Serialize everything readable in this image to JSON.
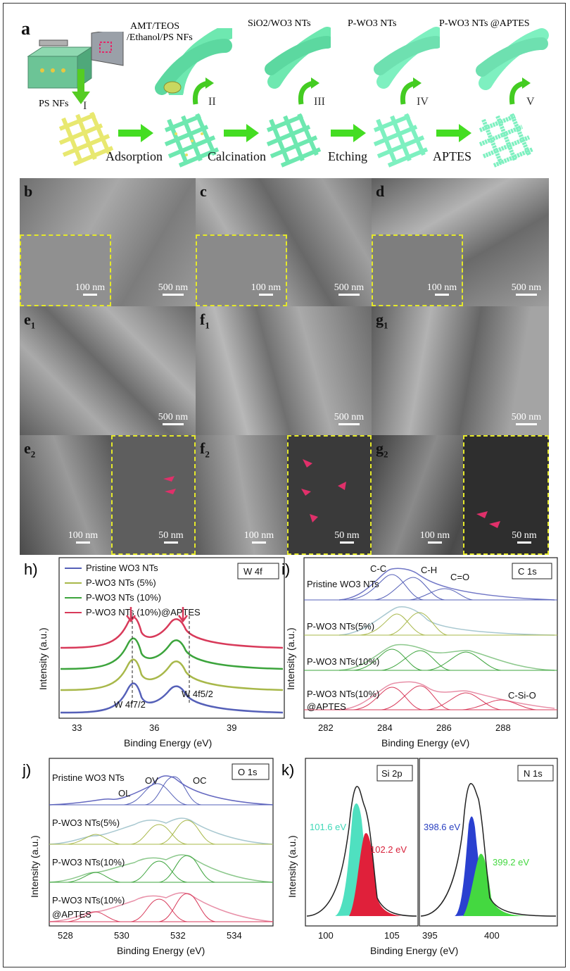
{
  "panel_a": {
    "letter": "a",
    "labels": [
      "AMT/TEOS",
      "/Ethanol/PS NFs",
      "SiO2/WO3 NTs",
      "P-WO3 NTs",
      "P-WO3 NTs @APTES"
    ],
    "ps_nfs": "PS NFs",
    "steps": [
      "Adsorption",
      "Calcination",
      "Etching",
      "APTES"
    ],
    "romans": [
      "I",
      "II",
      "III",
      "IV",
      "V"
    ]
  },
  "sem": {
    "letters": [
      "b",
      "c",
      "d",
      "e",
      "f",
      "g",
      "e",
      "f",
      "g"
    ],
    "subs": [
      "1",
      "1",
      "1",
      "2",
      "2",
      "2"
    ],
    "scale_500": "500 nm",
    "scale_100": "100 nm",
    "scale_50": "50 nm"
  },
  "panel_h": {
    "letter": "h)",
    "tag": "W 4f",
    "legend": [
      "Pristine WO3 NTs",
      "P-WO3 NTs (5%)",
      "P-WO3 NTs (10%)",
      "P-WO3 NTs (10%)@APTES"
    ],
    "peak1": "W 4f7/2",
    "peak2": "W 4f5/2",
    "xlabel": "Binding Energy (eV)",
    "ylabel": "Intensity (a.u.)",
    "ticks": [
      "33",
      "36",
      "39"
    ]
  },
  "panel_i": {
    "letter": "i)",
    "tag": "C 1s",
    "rows": [
      "Pristine WO3 NTs",
      "P-WO3 NTs(5%)",
      "P-WO3 NTs(10%)",
      "P-WO3 NTs(10%)",
      "@APTES"
    ],
    "peaks": [
      "C-C",
      "C-H",
      "C=O",
      "C-Si-O"
    ],
    "xlabel": "Binding Energy (eV)",
    "ylabel": "Intensity (a.u.)",
    "ticks": [
      "282",
      "284",
      "286",
      "288"
    ]
  },
  "panel_j": {
    "letter": "j)",
    "tag": "O 1s",
    "rows": [
      "Pristine WO3 NTs",
      "P-WO3 NTs(5%)",
      "P-WO3 NTs(10%)",
      "P-WO3 NTs(10%)",
      "@APTES"
    ],
    "peaks": [
      "OL",
      "OV",
      "OC"
    ],
    "xlabel": "Binding Energy (eV)",
    "ylabel": "Intensity (a.u.)",
    "ticks": [
      "528",
      "530",
      "532",
      "534"
    ]
  },
  "panel_k": {
    "letter": "k)",
    "tag1": "Si 2p",
    "tag2": "N 1s",
    "v1": "101.6 eV",
    "v2": "102.2 eV",
    "v3": "398.6 eV",
    "v4": "399.2 eV",
    "xlabel": "Binding Energy (eV)",
    "ylabel": "Intensity (a.u.)",
    "ticks": [
      "100",
      "105",
      "395",
      "400"
    ]
  },
  "colors": {
    "blue": "#5560b8",
    "olive": "#a8b84a",
    "green": "#3ca43c",
    "red": "#d83a5a",
    "teal": "#4fe0c0",
    "mesh": "#6ee8b0",
    "arrow": "#44dd22"
  }
}
